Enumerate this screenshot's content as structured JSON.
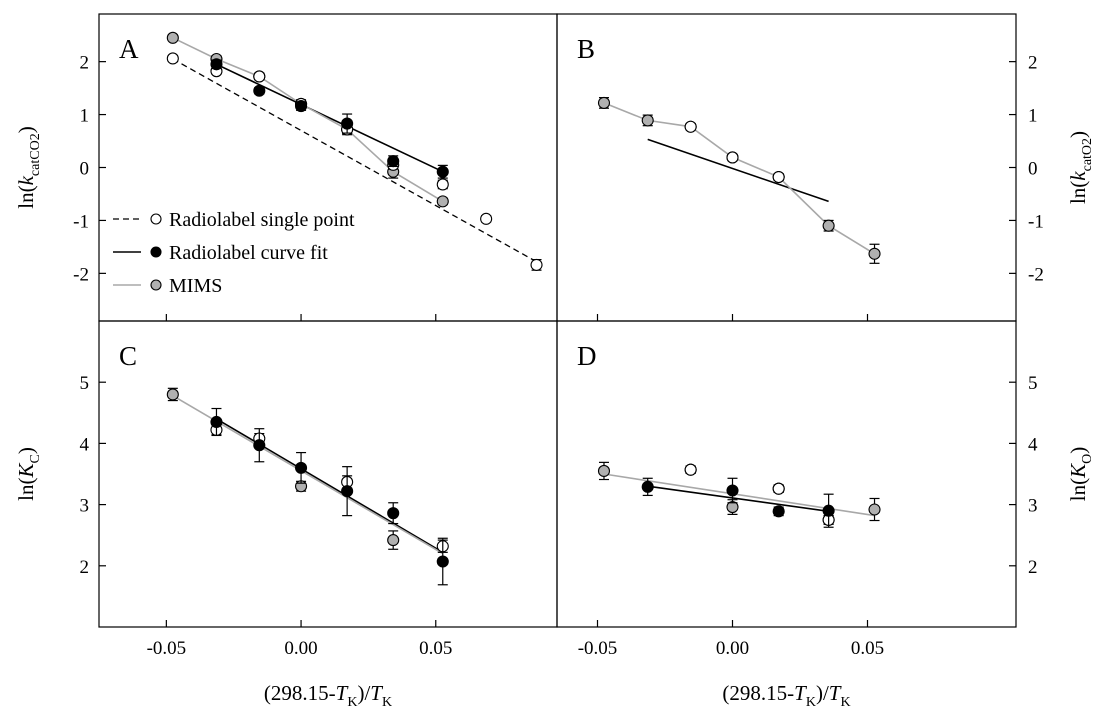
{
  "chart_data": [
    {
      "panel": "A",
      "type": "scatter",
      "ylabel": {
        "pre": "ln(",
        "var": "k",
        "sub": "catCO2",
        "post": ")"
      },
      "xlabel": {
        "pre": "(298.15-",
        "var": "T",
        "sub": "K",
        "mid": ")/",
        "var2": "T",
        "sub2": "K"
      },
      "xlim": [
        -0.075,
        0.095
      ],
      "ylim": [
        -2.9,
        2.9
      ],
      "xticks": [
        -0.05,
        0.0,
        0.05
      ],
      "xtick_labels": [
        "-0.05",
        "0.00",
        "0.05"
      ],
      "yticks": [
        -2,
        -1,
        0,
        1,
        2
      ],
      "ytick_labels": [
        "-2",
        "-1",
        "0",
        "1",
        "2"
      ],
      "legend": [
        {
          "label": "Radiolabel single point",
          "line": "dashed",
          "marker": "open"
        },
        {
          "label": "Radiolabel curve fit",
          "line": "solid-black",
          "marker": "black"
        },
        {
          "label": "MIMS",
          "line": "solid-gray",
          "marker": "gray"
        }
      ],
      "series": [
        {
          "name": "Radiolabel single point",
          "marker": "open",
          "line": "dashed",
          "x": [
            -0.0476,
            -0.0314,
            -0.0155,
            0.0,
            0.0171,
            0.0342,
            0.0526,
            0.0687,
            0.0874
          ],
          "y": [
            2.06,
            1.82,
            1.72,
            1.2,
            0.72,
            0.05,
            -0.32,
            -0.97,
            -1.84
          ],
          "err": [
            0.05,
            0.06,
            0.06,
            0.05,
            0.08,
            0.08,
            0.08,
            0.06,
            0.1
          ],
          "fit": [
            [
              -0.0476,
              2.05
            ],
            [
              0.0874,
              -1.78
            ]
          ]
        },
        {
          "name": "Radiolabel curve fit",
          "marker": "black",
          "line": "solid-black",
          "x": [
            -0.0314,
            -0.0155,
            0.0,
            0.0171,
            0.0342,
            0.0526
          ],
          "y": [
            1.95,
            1.45,
            1.16,
            0.83,
            0.12,
            -0.08
          ],
          "err": [
            0.08,
            0.06,
            0.08,
            0.18,
            0.1,
            0.12
          ],
          "fit": [
            [
              -0.0314,
              1.95
            ],
            [
              0.0526,
              -0.08
            ]
          ]
        },
        {
          "name": "MIMS",
          "marker": "gray",
          "line": "solid-gray",
          "x": [
            -0.0476,
            -0.0314,
            -0.0155,
            0.0,
            0.0171,
            0.0342,
            0.0526
          ],
          "y": [
            2.45,
            2.05,
            1.72,
            1.2,
            0.72,
            -0.08,
            -0.64
          ],
          "err": [
            0.05,
            0.06,
            0.06,
            0.08,
            0.1,
            0.12,
            0.06
          ],
          "fit": [
            [
              -0.0476,
              2.45
            ],
            [
              -0.0314,
              2.05
            ],
            [
              -0.0155,
              1.72
            ],
            [
              0.0,
              1.2
            ],
            [
              0.0171,
              0.72
            ],
            [
              0.0342,
              -0.08
            ],
            [
              0.0526,
              -0.64
            ]
          ]
        }
      ]
    },
    {
      "panel": "B",
      "type": "scatter",
      "ylabel": {
        "pre": "ln(",
        "var": "k",
        "sub": "catO2",
        "post": ")"
      },
      "xlabel": {
        "pre": "(298.15-",
        "var": "T",
        "sub": "K",
        "mid": ")/",
        "var2": "T",
        "sub2": "K"
      },
      "xlim": [
        -0.065,
        0.105
      ],
      "ylim": [
        -2.9,
        2.9
      ],
      "xticks": [
        -0.05,
        0.0,
        0.05
      ],
      "xtick_labels": [
        "-0.05",
        "0.00",
        "0.05"
      ],
      "yticks": [
        -2,
        -1,
        0,
        1,
        2
      ],
      "ytick_labels": [
        "-2",
        "-1",
        "0",
        "1",
        "2"
      ],
      "series": [
        {
          "name": "Radiolabel single point",
          "marker": "open",
          "line": "none",
          "x": [
            -0.0155,
            0.0,
            0.0171
          ],
          "y": [
            0.77,
            0.19,
            -0.18
          ],
          "err": [
            0.06,
            0.06,
            0.06
          ],
          "fit": []
        },
        {
          "name": "Radiolabel curve fit",
          "marker": "black",
          "line": "solid-black",
          "x": [],
          "y": [],
          "err": [],
          "fit": [
            [
              -0.0314,
              0.53
            ],
            [
              0.0356,
              -0.64
            ]
          ]
        },
        {
          "name": "MIMS",
          "marker": "gray",
          "line": "solid-gray",
          "x": [
            -0.0476,
            -0.0314,
            -0.0155,
            0.0,
            0.0171,
            0.0356,
            0.0526
          ],
          "y": [
            1.22,
            0.89,
            0.77,
            0.19,
            -0.18,
            -1.1,
            -1.63
          ],
          "err": [
            0.1,
            0.1,
            0.06,
            0.06,
            0.06,
            0.1,
            0.18
          ],
          "fit": [
            [
              -0.0476,
              1.22
            ],
            [
              -0.0314,
              0.89
            ],
            [
              -0.0155,
              0.77
            ],
            [
              0.0,
              0.19
            ],
            [
              0.0171,
              -0.18
            ],
            [
              0.0356,
              -1.1
            ],
            [
              0.0526,
              -1.63
            ]
          ]
        }
      ]
    },
    {
      "panel": "C",
      "type": "scatter",
      "ylabel": {
        "pre": "ln(",
        "var": "K",
        "sub": "C",
        "post": ")"
      },
      "xlabel": {
        "pre": "(298.15-",
        "var": "T",
        "sub": "K",
        "mid": ")/",
        "var2": "T",
        "sub2": "K"
      },
      "xlim": [
        -0.075,
        0.095
      ],
      "ylim": [
        1.0,
        6.0
      ],
      "xticks": [
        -0.05,
        0.0,
        0.05
      ],
      "xtick_labels": [
        "-0.05",
        "0.00",
        "0.05"
      ],
      "yticks": [
        2,
        3,
        4,
        5
      ],
      "ytick_labels": [
        "2",
        "3",
        "4",
        "5"
      ],
      "series": [
        {
          "name": "Radiolabel single point",
          "marker": "open",
          "line": "dashed",
          "x": [
            -0.0314,
            -0.0155,
            0.0171,
            0.0526
          ],
          "y": [
            4.22,
            4.08,
            3.37,
            2.32
          ],
          "err": [
            0.08,
            0.08,
            0.1,
            0.1
          ],
          "fit": []
        },
        {
          "name": "Radiolabel curve fit",
          "marker": "black",
          "line": "solid-black",
          "x": [
            -0.0314,
            -0.0155,
            0.0,
            0.0171,
            0.0342,
            0.0526
          ],
          "y": [
            4.35,
            3.97,
            3.6,
            3.22,
            2.86,
            2.07
          ],
          "err": [
            0.22,
            0.27,
            0.25,
            0.4,
            0.17,
            0.38
          ],
          "fit": [
            [
              -0.0314,
              4.4
            ],
            [
              0.0526,
              2.22
            ]
          ]
        },
        {
          "name": "MIMS",
          "marker": "gray",
          "line": "solid-gray",
          "x": [
            -0.0476,
            0.0,
            0.0342
          ],
          "y": [
            4.8,
            3.3,
            2.42
          ],
          "err": [
            0.1,
            0.08,
            0.15
          ],
          "fit": [
            [
              -0.0476,
              4.78
            ],
            [
              0.0526,
              2.2
            ]
          ]
        }
      ]
    },
    {
      "panel": "D",
      "type": "scatter",
      "ylabel": {
        "pre": "ln(",
        "var": "K",
        "sub": "O",
        "post": ")"
      },
      "xlabel": {
        "pre": "(298.15-",
        "var": "T",
        "sub": "K",
        "mid": ")/",
        "var2": "T",
        "sub2": "K"
      },
      "xlim": [
        -0.065,
        0.105
      ],
      "ylim": [
        1.0,
        6.0
      ],
      "xticks": [
        -0.05,
        0.0,
        0.05
      ],
      "xtick_labels": [
        "-0.05",
        "0.00",
        "0.05"
      ],
      "yticks": [
        2,
        3,
        4,
        5
      ],
      "ytick_labels": [
        "2",
        "3",
        "4",
        "5"
      ],
      "series": [
        {
          "name": "Radiolabel single point",
          "marker": "open",
          "line": "none",
          "x": [
            -0.0155,
            0.0171,
            0.0356
          ],
          "y": [
            3.57,
            3.26,
            2.75
          ],
          "err": [
            0.06,
            0.06,
            0.07
          ],
          "fit": []
        },
        {
          "name": "Radiolabel curve fit",
          "marker": "black",
          "line": "solid-black",
          "x": [
            -0.0314,
            0.0,
            0.0171,
            0.0356
          ],
          "y": [
            3.29,
            3.23,
            2.89,
            2.9
          ],
          "err": [
            0.14,
            0.2,
            0.07,
            0.27
          ],
          "fit": [
            [
              -0.0314,
              3.3
            ],
            [
              0.0356,
              2.89
            ]
          ]
        },
        {
          "name": "MIMS",
          "marker": "gray",
          "line": "solid-gray",
          "x": [
            -0.0476,
            -0.0155,
            0.0,
            0.0171,
            0.0356,
            0.0526
          ],
          "y": [
            3.55,
            3.57,
            2.96,
            3.26,
            2.75,
            2.92
          ],
          "err": [
            0.14,
            0.06,
            0.12,
            0.06,
            0.07,
            0.18
          ],
          "fit": [
            [
              -0.0476,
              3.5
            ],
            [
              0.0526,
              2.82
            ]
          ]
        }
      ]
    }
  ]
}
